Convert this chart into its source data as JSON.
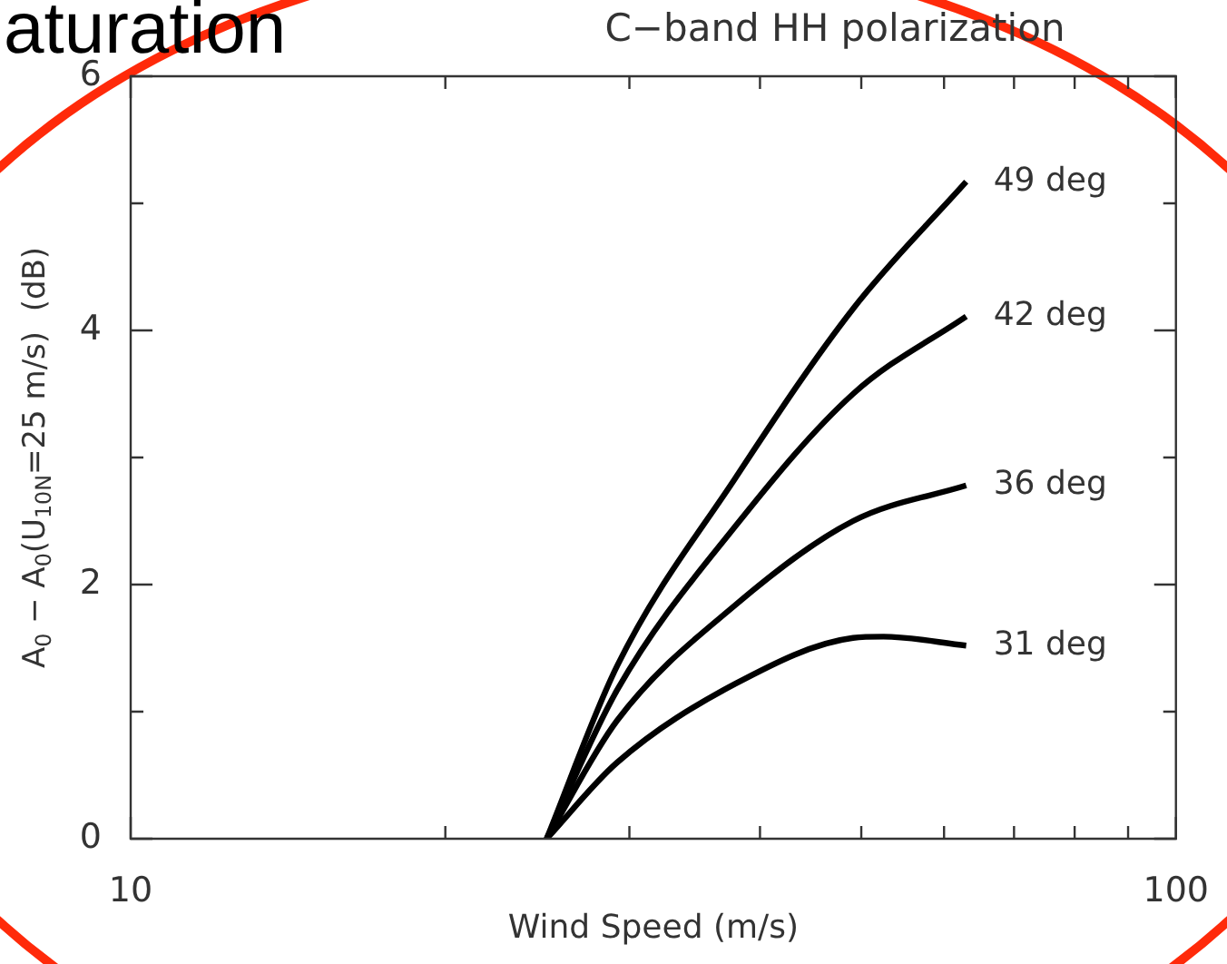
{
  "chart_data": {
    "type": "line",
    "title": "C−band HH polarization",
    "xlabel": "Wind Speed (m/s)",
    "ylabel": "A$_{0}$ − A$_{0}$(U$_{10N}$=25 m/s)  (dB)",
    "annotations": [
      "aturation"
    ],
    "log": "x",
    "grid": false,
    "legend": false,
    "marker": "none",
    "line_style": "solid",
    "xlim": [
      10,
      100
    ],
    "xticks": [
      10,
      {
        "value": 20,
        "label": null
      },
      {
        "value": 30,
        "label": null
      },
      {
        "value": 40,
        "label": null
      },
      {
        "value": 50,
        "label": null
      },
      {
        "value": 60,
        "label": null
      },
      {
        "value": 70,
        "label": null
      },
      {
        "value": 80,
        "label": null
      },
      {
        "value": 90,
        "label": null
      },
      100
    ],
    "ylim": [
      0,
      6
    ],
    "yticks": [
      0,
      {
        "value": 1,
        "label": null
      },
      2,
      {
        "value": 3,
        "label": null
      },
      4,
      {
        "value": 5,
        "label": null
      },
      6
    ],
    "x": [
      25,
      29.2,
      37.9,
      49.1,
      63
    ],
    "series": [
      {
        "name": "49 deg",
        "color": "#000000",
        "values": [
          0,
          1.36,
          2.84,
          4.17,
          5.17
        ]
      },
      {
        "name": "42 deg",
        "color": "#000000",
        "values": [
          0,
          1.17,
          2.46,
          3.5,
          4.11
        ]
      },
      {
        "name": "36 deg",
        "color": "#000000",
        "values": [
          0,
          0.93,
          1.84,
          2.5,
          2.78
        ]
      },
      {
        "name": "31 deg",
        "color": "#000000",
        "x": [
          25,
          29.2,
          37.9,
          49.1,
          52.5,
          63
        ],
        "values": [
          0,
          0.6,
          1.22,
          1.58,
          1.59,
          1.52
        ]
      }
    ]
  }
}
